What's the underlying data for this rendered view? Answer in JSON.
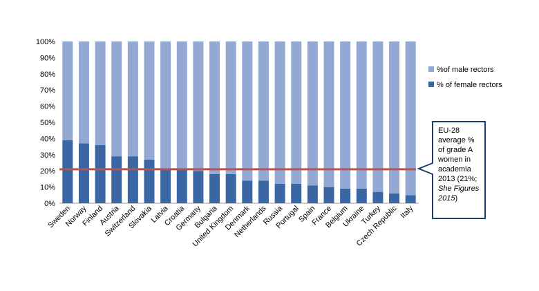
{
  "chart_data": {
    "type": "bar",
    "stacked": true,
    "percent_stacked": true,
    "categories": [
      "Sweden",
      "Norway",
      "Finland",
      "Austria",
      "Switzerland",
      "Slovakia",
      "Latvia",
      "Croatia",
      "Germany",
      "Bulgaria",
      "United Kingdom",
      "Denmark",
      "Netherlands",
      "Russia",
      "Portugal",
      "Spain",
      "France",
      "Belgium",
      "Ukraine",
      "Turkey",
      "Czech Republic",
      "Italy"
    ],
    "series": [
      {
        "name": "% of female rectors",
        "color": "#3a66a3",
        "values": [
          39,
          37,
          36,
          29,
          29,
          27,
          21,
          21,
          20,
          18,
          18,
          14,
          14,
          12,
          12,
          11,
          10,
          9,
          9,
          7,
          6,
          5
        ]
      },
      {
        "name": "%of male rectors",
        "color": "#93a9d3",
        "values": [
          61,
          63,
          64,
          71,
          71,
          73,
          79,
          79,
          80,
          82,
          82,
          86,
          86,
          88,
          88,
          89,
          90,
          91,
          91,
          93,
          94,
          95
        ]
      }
    ],
    "ylim": [
      0,
      100
    ],
    "yticks": [
      "0%",
      "10%",
      "20%",
      "30%",
      "40%",
      "50%",
      "60%",
      "70%",
      "80%",
      "90%",
      "100%"
    ],
    "reference_line": {
      "value": 21,
      "color": "#c0504d"
    },
    "legend": {
      "position": "right",
      "order": [
        "%of male rectors",
        "% of female rectors"
      ]
    },
    "annotation": {
      "lines": [
        "EU-28",
        "average %",
        "of grade A",
        "women in",
        "academia",
        "2013 (21%;"
      ],
      "italic_lines": [
        "She Figures",
        "2015"
      ],
      "closing": ")"
    },
    "grid": false
  }
}
